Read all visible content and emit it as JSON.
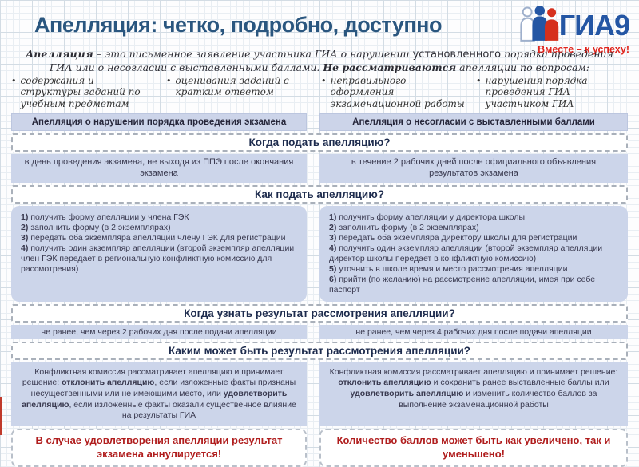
{
  "header": {
    "title": "Апелляция: четко, подробно, доступно",
    "logo": {
      "text": "ГИА9",
      "tagline": "Вместе – к успеху!"
    }
  },
  "intro_segments": [
    {
      "t": "Апелляция ",
      "c": "bold"
    },
    {
      "t": "– это письменное заявление участника ГИА о нарушении "
    },
    {
      "t": "установленного",
      "c": "alt"
    },
    {
      "t": " порядка проведения ГИА или о несогласии с выставленными баллами. "
    },
    {
      "t": "Не рассматриваются",
      "c": "bold"
    },
    {
      "t": " апелляции по вопросам:"
    }
  ],
  "ui": {
    "bullet": "•"
  },
  "exclusions": [
    "содержания и структуры заданий по учебным предметам",
    "оценивания заданий с кратким ответом",
    "неправильного оформления экзаменационной работы",
    "нарушения порядка проведения ГИА участником ГИА"
  ],
  "sections": {
    "when_submit": "Когда подать апелляцию?",
    "how_submit": "Как подать апелляцию?",
    "when_result": "Когда узнать результат рассмотрения апелляции?",
    "outcome": "Каким может быть результат рассмотрения апелляции?"
  },
  "columns": {
    "left": {
      "header": "Апелляция о нарушении порядка проведения экзамена",
      "when_submit": "в день проведения экзамена, не выходя из ППЭ после окончания экзамена",
      "how_steps": [
        {
          "num": "1)",
          "text": "получить форму апелляции у члена ГЭК"
        },
        {
          "num": "2)",
          "text": "заполнить форму (в 2 экземплярах)"
        },
        {
          "num": "3)",
          "text": "передать оба экземпляра апелляции члену ГЭК для регистрации"
        },
        {
          "num": "4)",
          "text": "получить один экземпляр апелляции (второй экземпляр апелляции член ГЭК передает в региональную конфликтную комиссию для рассмотрения)"
        }
      ],
      "when_result": "не ранее, чем через 2 рабочих дня после подачи апелляции",
      "outcome_segments": [
        {
          "t": "Конфликтная комиссия рассматривает апелляцию и принимает решение: "
        },
        {
          "t": "отклонить апелляцию",
          "c": "b"
        },
        {
          "t": ", если изложенные факты признаны несущественными или не имеющими место, или "
        },
        {
          "t": "удовлетворить апелляцию",
          "c": "b"
        },
        {
          "t": ",  если изложенные факты оказали существенное влияние на результаты ГИА"
        }
      ],
      "warning": "В случае удовлетворения апелляции результат экзамена аннулируется!"
    },
    "right": {
      "header": "Апелляция о несогласии с выставленными баллами",
      "when_submit": "в течение 2 рабочих дней после официального объявления результатов экзамена",
      "how_steps": [
        {
          "num": "1)",
          "text": "получить форму апелляции у директора школы"
        },
        {
          "num": "2)",
          "text": "заполнить форму (в 2 экземплярах)"
        },
        {
          "num": "3)",
          "text": "передать оба экземпляра директору школы для регистрации"
        },
        {
          "num": "4)",
          "text": "получить один экземпляр апелляции (второй экземпляр апелляции директор школы передает в конфликтную комиссию)"
        },
        {
          "num": "5)",
          "text": "уточнить в школе время и место рассмотрения апелляции"
        },
        {
          "num": "6)",
          "text": "прийти (по желанию) на рассмотрение апелляции, имея при себе паспорт"
        }
      ],
      "when_result": "не ранее, чем через 4 рабочих дня после подачи апелляции",
      "outcome_segments": [
        {
          "t": "Конфликтная комиссия рассматривает апелляцию и принимает решение: "
        },
        {
          "t": "отклонить апелляцию",
          "c": "b"
        },
        {
          "t": " и сохранить ранее выставленные баллы или "
        },
        {
          "t": "удовлетворить апелляцию",
          "c": "b"
        },
        {
          "t": " и изменить количество баллов за выполнение экзаменационной работы"
        }
      ],
      "warning": "Количество баллов может быть как увеличено, так и уменьшено!"
    }
  },
  "colors": {
    "title_navy": "#2a567f",
    "logo_blue": "#2456a4",
    "logo_red": "#d6301d",
    "accent_red_text": "#b01d1d",
    "box_lavender": "#ccd5ea",
    "section_text_navy": "#1d2b4d"
  }
}
